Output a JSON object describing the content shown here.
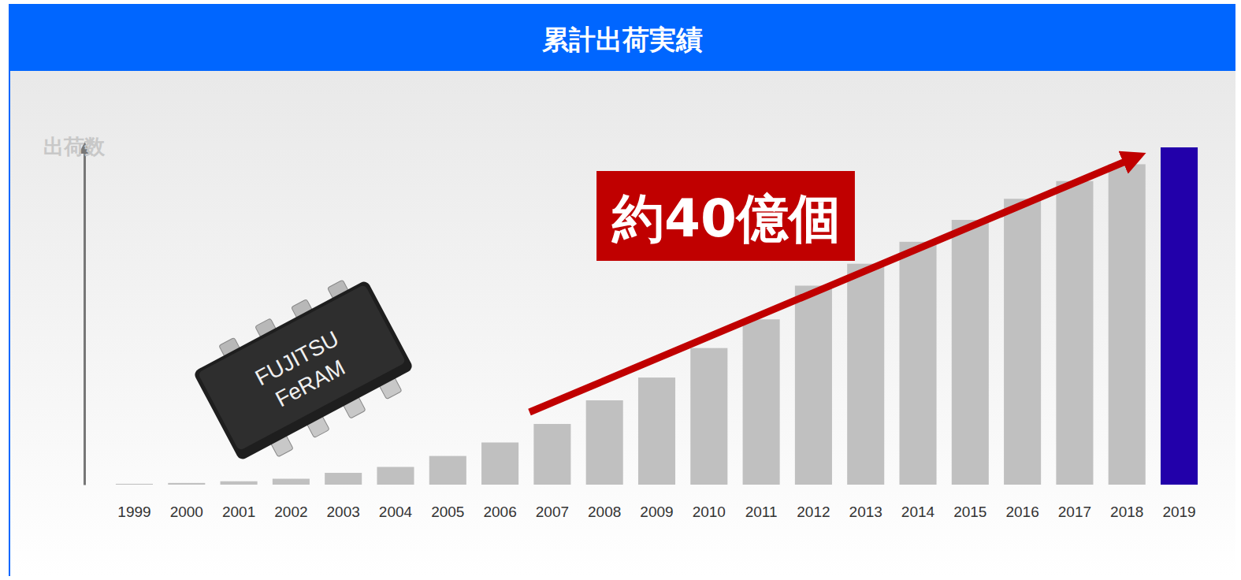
{
  "chart_data": {
    "type": "bar",
    "title": "累計出荷実績",
    "y_label": "出荷数",
    "annotations": [
      "約40億個"
    ],
    "chip_label": [
      "FUJITSU",
      "FeRAM"
    ],
    "categories": [
      "1999",
      "2000",
      "2001",
      "2002",
      "2003",
      "2004",
      "2005",
      "2006",
      "2007",
      "2008",
      "2009",
      "2010",
      "2011",
      "2012",
      "2013",
      "2014",
      "2015",
      "2016",
      "2017",
      "2018",
      "2019"
    ],
    "values": [
      0.1,
      0.2,
      0.4,
      0.7,
      1.4,
      2.1,
      3.4,
      5.0,
      7.2,
      10.0,
      12.7,
      16.2,
      19.6,
      23.6,
      26.2,
      28.8,
      31.4,
      33.9,
      36.0,
      38.0,
      40
    ],
    "colors": [
      "#c0c0c0",
      "#c0c0c0",
      "#c0c0c0",
      "#c0c0c0",
      "#c0c0c0",
      "#c0c0c0",
      "#c0c0c0",
      "#c0c0c0",
      "#c0c0c0",
      "#c0c0c0",
      "#c0c0c0",
      "#c0c0c0",
      "#c0c0c0",
      "#c0c0c0",
      "#c0c0c0",
      "#c0c0c0",
      "#c0c0c0",
      "#c0c0c0",
      "#c0c0c0",
      "#c0c0c0",
      "#2200aa"
    ],
    "ylim": [
      0,
      40
    ],
    "tick_labels": "x",
    "grid": false
  }
}
